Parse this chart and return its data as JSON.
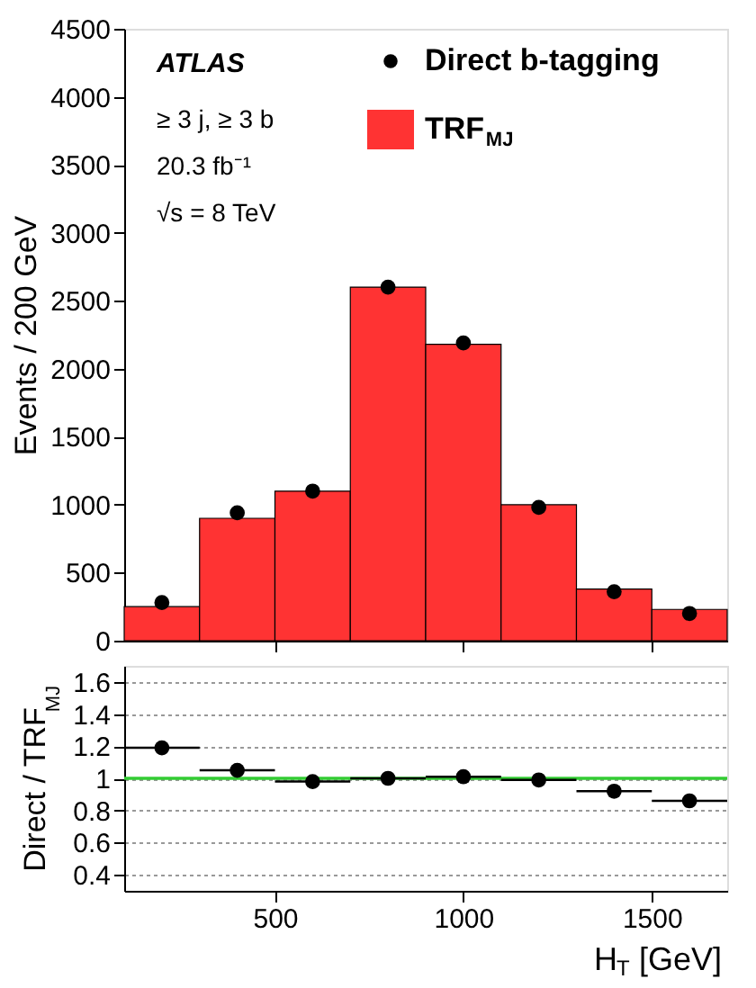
{
  "chart_data": [
    {
      "type": "histogram",
      "ylabel": "Events / 200  GeV",
      "bins": [
        100,
        300,
        500,
        700,
        900,
        1100,
        1300,
        1500,
        1700
      ],
      "series": [
        {
          "name": "Direct b-tagging",
          "type": "scatter",
          "color": "#000000",
          "x": [
            200,
            400,
            600,
            800,
            1000,
            1200,
            1400,
            1600
          ],
          "values": [
            280,
            940,
            1100,
            2600,
            2190,
            980,
            360,
            200
          ]
        },
        {
          "name": "TRF$_{MJ}$",
          "type": "histogram",
          "color": "#ff3333",
          "values": [
            250,
            900,
            1100,
            2600,
            2180,
            1000,
            380,
            230
          ]
        }
      ],
      "xlim": [
        100,
        1700
      ],
      "xticks": [
        500,
        1000,
        1500
      ],
      "ylim": [
        0,
        4500
      ],
      "yticks": [
        0,
        500,
        1000,
        1500,
        2000,
        2500,
        3000,
        3500,
        4000,
        4500
      ],
      "tick_labels": "y",
      "legend": "top right",
      "marker": "circle",
      "annotations": [
        "ATLAS",
        "≥ 3 j, ≥ 3 b",
        "20.3 fb⁻¹",
        "√s = 8 TeV"
      ]
    },
    {
      "type": "scatter",
      "xlabel": "H$_{T}$ [GeV]",
      "ylabel": "Direct / TRF$_{MJ}$",
      "x": [
        200,
        400,
        600,
        800,
        1000,
        1200,
        1400,
        1600
      ],
      "values": [
        1.19,
        1.05,
        0.98,
        1.0,
        1.01,
        0.99,
        0.92,
        0.86
      ],
      "color": "#000000",
      "errors": [
        0.04,
        0.015,
        0.015,
        0.015,
        0.015,
        0.015,
        0.02,
        0.03
      ],
      "xerrors": [
        100,
        100,
        100,
        100,
        100,
        100,
        100,
        100
      ],
      "xlim": [
        100,
        1700
      ],
      "xticks": [
        500,
        1000,
        1500
      ],
      "ylim": [
        0.3,
        1.7
      ],
      "yticks": [
        0.4,
        0.6,
        0.8,
        1,
        1.2,
        1.4,
        1.6
      ],
      "grid": "y",
      "marker": "circle",
      "bands": [
        {
          "axis": "y",
          "from": 0.99,
          "to": 1.01,
          "color": "#33cc33"
        }
      ]
    }
  ]
}
